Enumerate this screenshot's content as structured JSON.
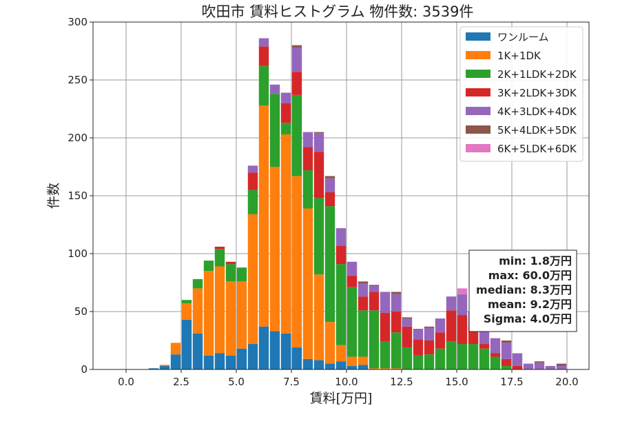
{
  "chart_data": {
    "type": "bar",
    "stacked": true,
    "title": "吹田市 賃料ヒストグラム 物件数: 3539件",
    "xlabel": "賃料[万円]",
    "ylabel": "件数",
    "xlim": [
      -1.5,
      21
    ],
    "ylim": [
      0,
      300
    ],
    "xticks": [
      0.0,
      2.5,
      5.0,
      7.5,
      10.0,
      12.5,
      15.0,
      17.5,
      20.0
    ],
    "xtick_labels": [
      "0.0",
      "2.5",
      "5.0",
      "7.5",
      "10.0",
      "12.5",
      "15.0",
      "17.5",
      "20.0"
    ],
    "yticks": [
      0,
      50,
      100,
      150,
      200,
      250,
      300
    ],
    "ytick_labels": [
      "0",
      "50",
      "100",
      "150",
      "200",
      "250",
      "300"
    ],
    "grid": true,
    "legend_position": "top-right",
    "bin_width": 0.5,
    "x": [
      1.25,
      1.75,
      2.25,
      2.75,
      3.25,
      3.75,
      4.25,
      4.75,
      5.25,
      5.75,
      6.25,
      6.75,
      7.25,
      7.75,
      8.25,
      8.75,
      9.25,
      9.75,
      10.25,
      10.75,
      11.25,
      11.75,
      12.25,
      12.75,
      13.25,
      13.75,
      14.25,
      14.75,
      15.25,
      15.75,
      16.25,
      16.75,
      17.25,
      17.75,
      18.25,
      18.75,
      19.25,
      19.75
    ],
    "series": [
      {
        "name": "ワンルーム",
        "color": "#1f77b4",
        "values": [
          1,
          3,
          13,
          43,
          31,
          12,
          14,
          12,
          18,
          22,
          37,
          33,
          31,
          19,
          9,
          8,
          5,
          7,
          3,
          4,
          0,
          0,
          0,
          0,
          0,
          0,
          0,
          0,
          0,
          0,
          0,
          0,
          0,
          0,
          0,
          0,
          0,
          0
        ]
      },
      {
        "name": "1K+1DK",
        "color": "#ff7f0e",
        "values": [
          0,
          1,
          10,
          14,
          39,
          73,
          75,
          64,
          58,
          112,
          191,
          142,
          172,
          148,
          130,
          74,
          36,
          14,
          8,
          7,
          1,
          1,
          1,
          0,
          0,
          0,
          0,
          0,
          0,
          0,
          0,
          0,
          0,
          0,
          0,
          0,
          0,
          0
        ]
      },
      {
        "name": "2K+1LDK+2DK",
        "color": "#2ca02c",
        "values": [
          0,
          0,
          0,
          3,
          8,
          9,
          15,
          15,
          12,
          21,
          34,
          63,
          10,
          70,
          33,
          66,
          100,
          70,
          60,
          40,
          50,
          23,
          31,
          19,
          12,
          13,
          18,
          24,
          22,
          22,
          18,
          11,
          3,
          0,
          0,
          0,
          0,
          0
        ]
      },
      {
        "name": "3K+2LDK+3DK",
        "color": "#d62728",
        "values": [
          0,
          0,
          0,
          0,
          0,
          0,
          2,
          2,
          0,
          15,
          17,
          0,
          17,
          20,
          20,
          40,
          12,
          16,
          10,
          12,
          16,
          25,
          18,
          18,
          14,
          12,
          14,
          27,
          25,
          16,
          4,
          3,
          6,
          3,
          0,
          0,
          0,
          0
        ]
      },
      {
        "name": "4K+3LDK+4DK",
        "color": "#9467bd",
        "values": [
          0,
          0,
          0,
          0,
          0,
          0,
          0,
          0,
          0,
          6,
          7,
          8,
          9,
          21,
          13,
          16,
          12,
          15,
          12,
          11,
          5,
          18,
          15,
          7,
          8,
          11,
          12,
          12,
          18,
          12,
          14,
          13,
          14,
          11,
          5,
          6,
          3,
          3
        ]
      },
      {
        "name": "5K+4LDK+5DK",
        "color": "#8c564b",
        "values": [
          0,
          0,
          0,
          0,
          0,
          0,
          0,
          0,
          0,
          0,
          0,
          0,
          0,
          2,
          0,
          1,
          2,
          0,
          0,
          2,
          1,
          0,
          2,
          1,
          1,
          1,
          0,
          0,
          0,
          0,
          0,
          0,
          2,
          0,
          0,
          1,
          0,
          2
        ]
      },
      {
        "name": "6K+5LDK+6DK",
        "color": "#e377c2",
        "values": [
          0,
          0,
          0,
          0,
          0,
          0,
          0,
          0,
          0,
          0,
          0,
          0,
          0,
          0,
          0,
          0,
          0,
          0,
          0,
          0,
          0,
          0,
          0,
          0,
          0,
          0,
          0,
          0,
          5,
          0,
          0,
          0,
          0,
          0,
          0,
          0,
          0,
          0
        ]
      }
    ],
    "stats": {
      "min": "min: 1.8万円",
      "max": "max: 60.0万円",
      "median": "median: 8.3万円",
      "mean": "mean: 9.2万円",
      "sigma": "Sigma: 4.0万円"
    }
  }
}
